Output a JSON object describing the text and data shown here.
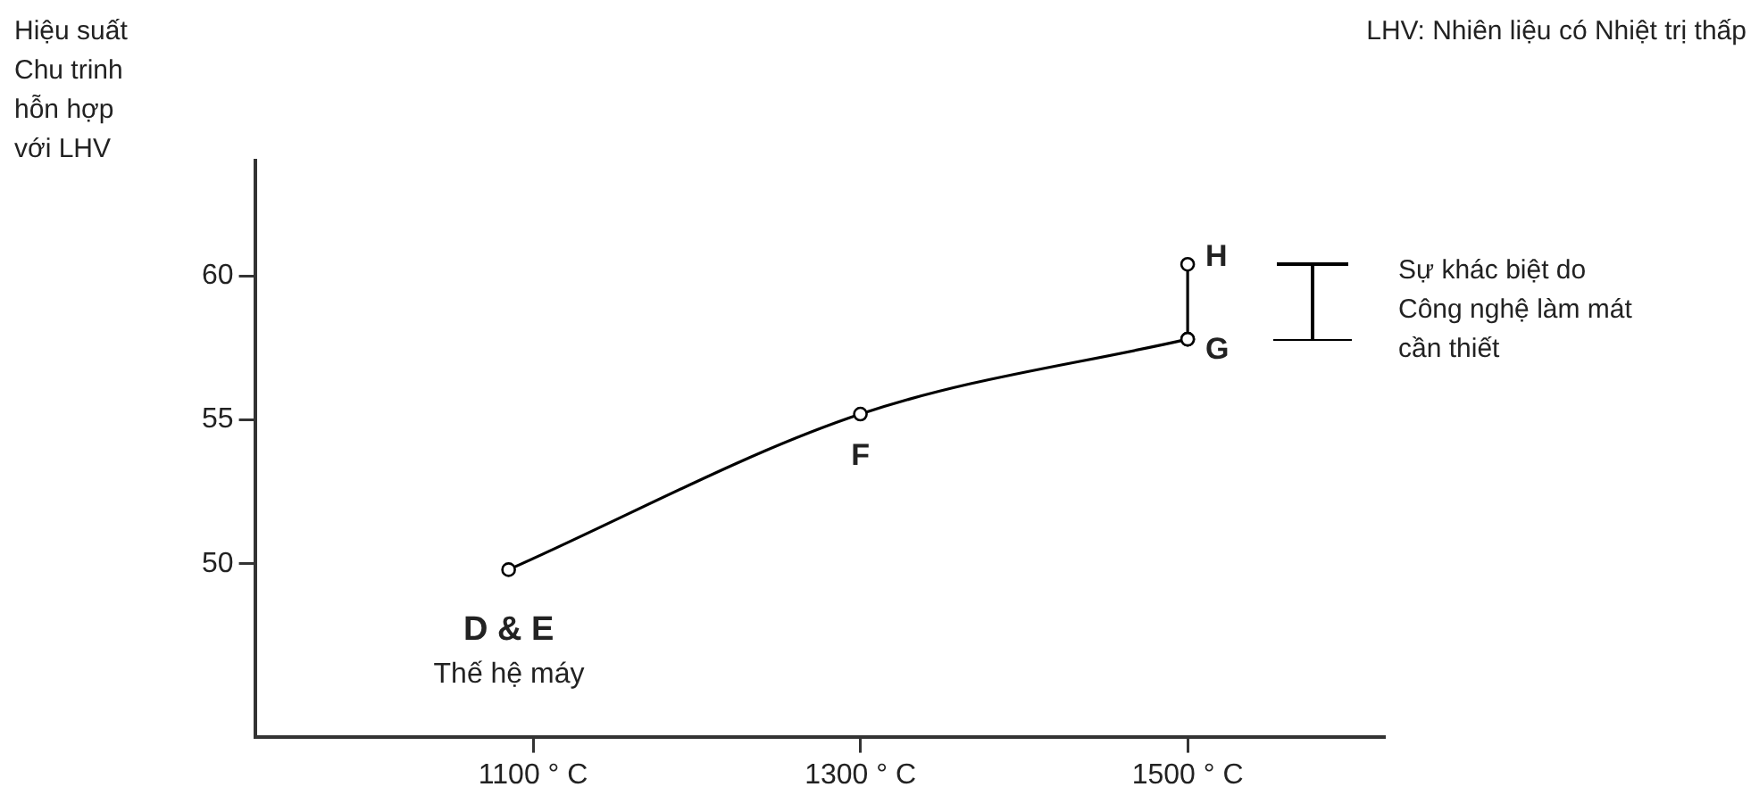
{
  "chart_data": {
    "type": "line",
    "ylabel": "Hiệu suất\nChu trinh\nhỗn hợp\nvới LHV",
    "xlim": [
      930,
      1620
    ],
    "xticks": [
      {
        "value": 1100,
        "label": "1100 ° C"
      },
      {
        "value": 1300,
        "label": "1300 ° C"
      },
      {
        "value": 1500,
        "label": "1500 ° C"
      }
    ],
    "ylim": [
      44,
      64
    ],
    "yticks": [
      50,
      55,
      60
    ],
    "series": [
      {
        "color": "#000000",
        "x": [
          1085,
          1300,
          1500
        ],
        "values": [
          49.8,
          55.2,
          57.8
        ]
      },
      {
        "color": "#000000",
        "x": [
          1500,
          1500
        ],
        "values": [
          57.8,
          60.4
        ]
      }
    ],
    "marker": "circle",
    "line_style": "solid",
    "grid": false,
    "legend": false,
    "annotations": [
      {
        "text": "D & E",
        "x": 1085,
        "y": 49.8
      },
      "Thế hệ máy",
      {
        "text": "F",
        "x": 1300,
        "y": 55.2
      },
      {
        "text": "G",
        "x": 1500,
        "y": 57.8
      },
      {
        "text": "H",
        "x": 1500,
        "y": 60.4
      },
      "Sự khác biệt do\nCông nghệ làm mát\ncần thiết",
      "LHV: Nhiên liệu có Nhiệt trị thấp"
    ]
  }
}
